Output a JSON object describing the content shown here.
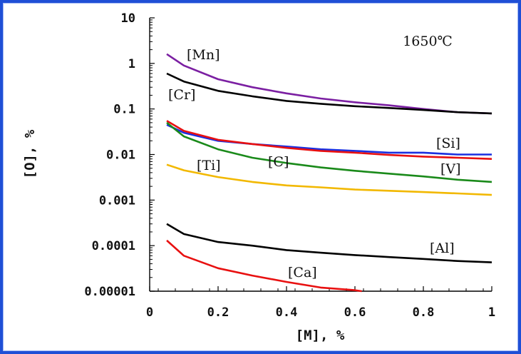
{
  "chart_data": {
    "type": "line",
    "annotation": "1650℃",
    "xlabel": "[M], %",
    "ylabel": "[O], %",
    "xlim": [
      0,
      1
    ],
    "ylim": [
      1e-05,
      10
    ],
    "yscale": "log",
    "grid": false,
    "x_ticks": [
      0,
      0.2,
      0.4,
      0.6,
      0.8,
      1
    ],
    "x_tick_labels": [
      "0",
      "0.2",
      "0.4",
      "0.6",
      "0.8",
      "1"
    ],
    "y_ticks": [
      10,
      1,
      0.1,
      0.01,
      0.001,
      0.0001,
      1e-05
    ],
    "y_tick_labels": [
      "10",
      "1",
      "0.1",
      "0.01",
      "0.001",
      "0.0001",
      "0.00001"
    ],
    "series": [
      {
        "name": "[Mn]",
        "color": "#7b1fa2",
        "x": [
          0.05,
          0.1,
          0.2,
          0.3,
          0.4,
          0.5,
          0.6,
          0.7,
          0.8,
          0.9,
          1.0
        ],
        "y": [
          1.6,
          0.9,
          0.45,
          0.3,
          0.22,
          0.17,
          0.14,
          0.12,
          0.1,
          0.085,
          0.08
        ]
      },
      {
        "name": "[Cr]",
        "color": "#000000",
        "x": [
          0.05,
          0.1,
          0.2,
          0.3,
          0.4,
          0.5,
          0.6,
          0.7,
          0.8,
          0.9,
          1.0
        ],
        "y": [
          0.6,
          0.4,
          0.25,
          0.19,
          0.15,
          0.13,
          0.115,
          0.105,
          0.095,
          0.085,
          0.08
        ]
      },
      {
        "name": "[Si]",
        "color": "#1a2fe0",
        "x": [
          0.05,
          0.1,
          0.2,
          0.3,
          0.4,
          0.5,
          0.6,
          0.7,
          0.8,
          0.9,
          1.0
        ],
        "y": [
          0.045,
          0.03,
          0.02,
          0.017,
          0.015,
          0.013,
          0.012,
          0.011,
          0.011,
          0.01,
          0.01
        ]
      },
      {
        "name": "[V]",
        "color": "#e81010",
        "x": [
          0.05,
          0.1,
          0.2,
          0.3,
          0.4,
          0.5,
          0.6,
          0.7,
          0.8,
          0.9,
          1.0
        ],
        "y": [
          0.055,
          0.033,
          0.021,
          0.017,
          0.014,
          0.012,
          0.011,
          0.0098,
          0.009,
          0.0085,
          0.008
        ]
      },
      {
        "name": "[C]",
        "color": "#1a8a1a",
        "x": [
          0.05,
          0.1,
          0.2,
          0.3,
          0.4,
          0.5,
          0.6,
          0.7,
          0.8,
          0.9,
          1.0
        ],
        "y": [
          0.05,
          0.025,
          0.013,
          0.0085,
          0.0065,
          0.0052,
          0.0044,
          0.0038,
          0.0033,
          0.0028,
          0.0025
        ]
      },
      {
        "name": "[Ti]",
        "color": "#f2b800",
        "x": [
          0.05,
          0.1,
          0.2,
          0.3,
          0.4,
          0.5,
          0.6,
          0.7,
          0.8,
          0.9,
          1.0
        ],
        "y": [
          0.006,
          0.0045,
          0.0032,
          0.0025,
          0.0021,
          0.0019,
          0.0017,
          0.0016,
          0.0015,
          0.0014,
          0.0013
        ]
      },
      {
        "name": "[Al]",
        "color": "#000000",
        "x": [
          0.05,
          0.1,
          0.2,
          0.3,
          0.4,
          0.5,
          0.6,
          0.7,
          0.8,
          0.9,
          1.0
        ],
        "y": [
          0.0003,
          0.00018,
          0.00012,
          0.0001,
          8e-05,
          7e-05,
          6.2e-05,
          5.6e-05,
          5.1e-05,
          4.6e-05,
          4.3e-05
        ]
      },
      {
        "name": "[Ca]",
        "color": "#e81010",
        "x": [
          0.05,
          0.1,
          0.2,
          0.3,
          0.4,
          0.5,
          0.6,
          0.62
        ],
        "y": [
          0.00013,
          6e-05,
          3.2e-05,
          2.2e-05,
          1.6e-05,
          1.2e-05,
          1.05e-05,
          1e-05
        ]
      }
    ]
  }
}
